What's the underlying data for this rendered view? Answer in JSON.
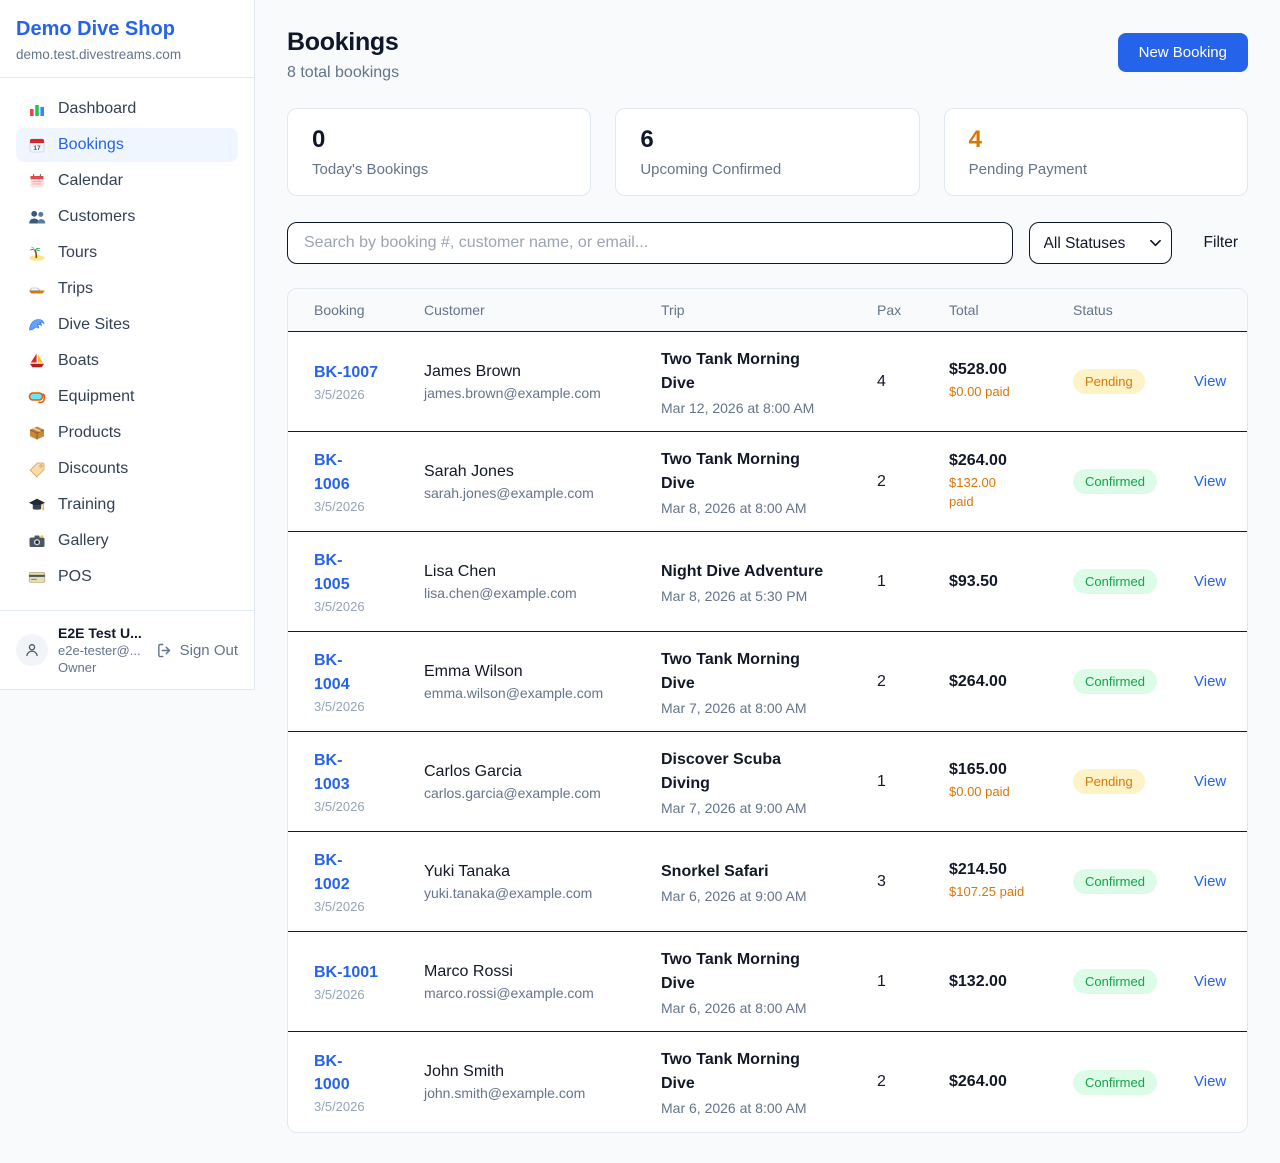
{
  "sidebar": {
    "shop_name": "Demo Dive Shop",
    "shop_domain": "demo.test.divestreams.com",
    "items": [
      {
        "icon": "bar-chart-icon",
        "label": "Dashboard",
        "active": false
      },
      {
        "icon": "calendar-icon",
        "label": "Bookings",
        "active": true
      },
      {
        "icon": "spiral-calendar-icon",
        "label": "Calendar",
        "active": false
      },
      {
        "icon": "people-icon",
        "label": "Customers",
        "active": false
      },
      {
        "icon": "island-icon",
        "label": "Tours",
        "active": false
      },
      {
        "icon": "speedboat-icon",
        "label": "Trips",
        "active": false
      },
      {
        "icon": "wave-icon",
        "label": "Dive Sites",
        "active": false
      },
      {
        "icon": "sailboat-icon",
        "label": "Boats",
        "active": false
      },
      {
        "icon": "diving-mask-icon",
        "label": "Equipment",
        "active": false
      },
      {
        "icon": "package-icon",
        "label": "Products",
        "active": false
      },
      {
        "icon": "tag-icon",
        "label": "Discounts",
        "active": false
      },
      {
        "icon": "graduation-cap-icon",
        "label": "Training",
        "active": false
      },
      {
        "icon": "camera-icon",
        "label": "Gallery",
        "active": false
      },
      {
        "icon": "credit-card-icon",
        "label": "POS",
        "active": false
      }
    ],
    "user": {
      "name": "E2E Test U...",
      "email": "e2e-tester@...",
      "role": "Owner",
      "sign_out_label": "Sign Out"
    }
  },
  "header": {
    "title": "Bookings",
    "subtitle": "8 total bookings",
    "new_booking_label": "New Booking"
  },
  "stats": [
    {
      "value": "0",
      "label": "Today's Bookings",
      "value_color": "#0f172a"
    },
    {
      "value": "6",
      "label": "Upcoming Confirmed",
      "value_color": "#0f172a"
    },
    {
      "value": "4",
      "label": "Pending Payment",
      "value_color": "#d97706"
    }
  ],
  "controls": {
    "search_placeholder": "Search by booking #, customer name, or email...",
    "status_filter_value": "All Statuses",
    "filter_label": "Filter"
  },
  "table": {
    "columns": [
      "Booking",
      "Customer",
      "Trip",
      "Pax",
      "Total",
      "Status"
    ],
    "view_label": "View",
    "rows": [
      {
        "id": "BK-1007",
        "id_display_lines": [
          "BK-1007"
        ],
        "date": "3/5/2026",
        "customer": "James Brown",
        "email": "james.brown@example.com",
        "trip": "Two Tank Morning Dive",
        "trip_display_lines": [
          "Two Tank Morning",
          "Dive"
        ],
        "trip_time": "Mar 12, 2026 at 8:00 AM",
        "pax": "4",
        "total": "$528.00",
        "paid": "$0.00 paid",
        "status": "Pending"
      },
      {
        "id": "BK-1006",
        "id_display_lines": [
          "BK-",
          "1006"
        ],
        "date": "3/5/2026",
        "customer": "Sarah Jones",
        "email": "sarah.jones@example.com",
        "trip": "Two Tank Morning Dive",
        "trip_display_lines": [
          "Two Tank Morning",
          "Dive"
        ],
        "trip_time": "Mar 8, 2026 at 8:00 AM",
        "pax": "2",
        "total": "$264.00",
        "paid": "$132.00 paid",
        "paid_display_lines": [
          "$132.00",
          "paid"
        ],
        "status": "Confirmed"
      },
      {
        "id": "BK-1005",
        "id_display_lines": [
          "BK-",
          "1005"
        ],
        "date": "3/5/2026",
        "customer": "Lisa Chen",
        "email": "lisa.chen@example.com",
        "trip": "Night Dive Adventure",
        "trip_display_lines": [
          "Night Dive Adventure"
        ],
        "trip_time": "Mar 8, 2026 at 5:30 PM",
        "pax": "1",
        "total": "$93.50",
        "paid": null,
        "status": "Confirmed"
      },
      {
        "id": "BK-1004",
        "id_display_lines": [
          "BK-",
          "1004"
        ],
        "date": "3/5/2026",
        "customer": "Emma Wilson",
        "email": "emma.wilson@example.com",
        "trip": "Two Tank Morning Dive",
        "trip_display_lines": [
          "Two Tank Morning",
          "Dive"
        ],
        "trip_time": "Mar 7, 2026 at 8:00 AM",
        "pax": "2",
        "total": "$264.00",
        "paid": null,
        "status": "Confirmed"
      },
      {
        "id": "BK-1003",
        "id_display_lines": [
          "BK-",
          "1003"
        ],
        "date": "3/5/2026",
        "customer": "Carlos Garcia",
        "email": "carlos.garcia@example.com",
        "trip": "Discover Scuba Diving",
        "trip_display_lines": [
          "Discover Scuba",
          "Diving"
        ],
        "trip_time": "Mar 7, 2026 at 9:00 AM",
        "pax": "1",
        "total": "$165.00",
        "paid": "$0.00 paid",
        "status": "Pending"
      },
      {
        "id": "BK-1002",
        "id_display_lines": [
          "BK-",
          "1002"
        ],
        "date": "3/5/2026",
        "customer": "Yuki Tanaka",
        "email": "yuki.tanaka@example.com",
        "trip": "Snorkel Safari",
        "trip_display_lines": [
          "Snorkel Safari"
        ],
        "trip_time": "Mar 6, 2026 at 9:00 AM",
        "pax": "3",
        "total": "$214.50",
        "paid": "$107.25 paid",
        "status": "Confirmed"
      },
      {
        "id": "BK-1001",
        "id_display_lines": [
          "BK-1001"
        ],
        "date": "3/5/2026",
        "customer": "Marco Rossi",
        "email": "marco.rossi@example.com",
        "trip": "Two Tank Morning Dive",
        "trip_display_lines": [
          "Two Tank Morning",
          "Dive"
        ],
        "trip_time": "Mar 6, 2026 at 8:00 AM",
        "pax": "1",
        "total": "$132.00",
        "paid": null,
        "status": "Confirmed"
      },
      {
        "id": "BK-1000",
        "id_display_lines": [
          "BK-",
          "1000"
        ],
        "date": "3/5/2026",
        "customer": "John Smith",
        "email": "john.smith@example.com",
        "trip": "Two Tank Morning Dive",
        "trip_display_lines": [
          "Two Tank Morning",
          "Dive"
        ],
        "trip_time": "Mar 6, 2026 at 8:00 AM",
        "pax": "2",
        "total": "$264.00",
        "paid": null,
        "status": "Confirmed"
      }
    ]
  },
  "colors": {
    "accent_blue": "#2563eb",
    "pending_text": "#d97706",
    "pending_badge_bg": "#fef3c7",
    "confirmed_text": "#16a34a",
    "confirmed_badge_bg": "#dcfce7",
    "paid_amount_orange": "#d97706",
    "page_background": "#f8fafc"
  }
}
